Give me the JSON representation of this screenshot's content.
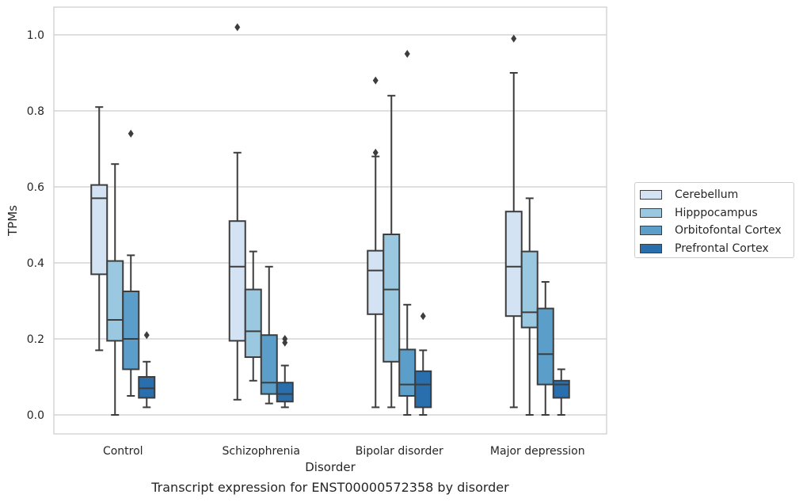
{
  "chart_data": {
    "type": "box",
    "xlabel": "Disorder",
    "ylabel": "TPMs",
    "ylim": [
      -0.05,
      1.075
    ],
    "yticks": [
      "0.0",
      "0.2",
      "0.4",
      "0.6",
      "0.8",
      "1.0"
    ],
    "grid": "horizontal",
    "legend_position": "right",
    "categories": [
      "Control",
      "Schizophrenia",
      "Bipolar disorder",
      "Major depression"
    ],
    "series": [
      {
        "name": "Cerebellum",
        "color": "#d3e3f3",
        "boxes": [
          {
            "whislo": 0.17,
            "q1": 0.37,
            "med": 0.57,
            "q3": 0.605,
            "whishi": 0.81,
            "fliers": []
          },
          {
            "whislo": 0.04,
            "q1": 0.195,
            "med": 0.39,
            "q3": 0.51,
            "whishi": 0.69,
            "fliers": [
              1.02
            ]
          },
          {
            "whislo": 0.02,
            "q1": 0.265,
            "med": 0.38,
            "q3": 0.432,
            "whishi": 0.68,
            "fliers": [
              0.88,
              0.69
            ]
          },
          {
            "whislo": 0.02,
            "q1": 0.26,
            "med": 0.39,
            "q3": 0.535,
            "whishi": 0.9,
            "fliers": [
              0.99
            ]
          }
        ]
      },
      {
        "name": "Hipppocampus",
        "color": "#9ac8e0",
        "boxes": [
          {
            "whislo": 0.0,
            "q1": 0.195,
            "med": 0.25,
            "q3": 0.405,
            "whishi": 0.66,
            "fliers": []
          },
          {
            "whislo": 0.09,
            "q1": 0.152,
            "med": 0.22,
            "q3": 0.33,
            "whishi": 0.43,
            "fliers": []
          },
          {
            "whislo": 0.02,
            "q1": 0.14,
            "med": 0.33,
            "q3": 0.475,
            "whishi": 0.84,
            "fliers": []
          },
          {
            "whislo": 0.0,
            "q1": 0.23,
            "med": 0.27,
            "q3": 0.43,
            "whishi": 0.57,
            "fliers": []
          }
        ]
      },
      {
        "name": "Orbitofontal Cortex",
        "color": "#5a9ec9",
        "boxes": [
          {
            "whislo": 0.05,
            "q1": 0.12,
            "med": 0.2,
            "q3": 0.325,
            "whishi": 0.42,
            "fliers": [
              0.74
            ]
          },
          {
            "whislo": 0.03,
            "q1": 0.055,
            "med": 0.085,
            "q3": 0.21,
            "whishi": 0.39,
            "fliers": []
          },
          {
            "whislo": 0.0,
            "q1": 0.05,
            "med": 0.08,
            "q3": 0.172,
            "whishi": 0.29,
            "fliers": [
              0.95
            ]
          },
          {
            "whislo": 0.0,
            "q1": 0.08,
            "med": 0.16,
            "q3": 0.28,
            "whishi": 0.35,
            "fliers": []
          }
        ]
      },
      {
        "name": "Prefrontal Cortex",
        "color": "#2a6fad",
        "boxes": [
          {
            "whislo": 0.02,
            "q1": 0.045,
            "med": 0.07,
            "q3": 0.1,
            "whishi": 0.14,
            "fliers": [
              0.21
            ]
          },
          {
            "whislo": 0.02,
            "q1": 0.035,
            "med": 0.055,
            "q3": 0.085,
            "whishi": 0.13,
            "fliers": [
              0.2,
              0.19
            ]
          },
          {
            "whislo": 0.0,
            "q1": 0.02,
            "med": 0.08,
            "q3": 0.115,
            "whishi": 0.17,
            "fliers": [
              0.26
            ]
          },
          {
            "whislo": 0.0,
            "q1": 0.045,
            "med": 0.08,
            "q3": 0.09,
            "whishi": 0.12,
            "fliers": []
          }
        ]
      }
    ]
  },
  "caption": "Transcript expression for ENST00000572358 by disorder"
}
